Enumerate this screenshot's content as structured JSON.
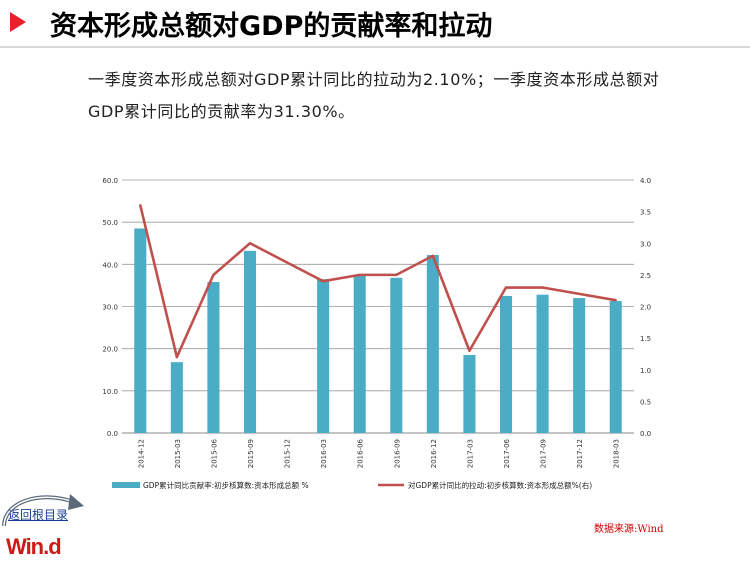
{
  "header": {
    "title": "资本形成总额对GDP的贡献率和拉动"
  },
  "description": "一季度资本形成总额对GDP累计同比的拉动为2.10%；一季度资本形成总额对GDP累计同比的贡献率为31.30%。",
  "chart_data": {
    "type": "bar",
    "categories": [
      "2014-12",
      "2015-03",
      "2015-06",
      "2015-09",
      "2015-12",
      "2016-03",
      "2016-06",
      "2016-09",
      "2016-12",
      "2017-03",
      "2017-06",
      "2017-09",
      "2017-12",
      "2018-03"
    ],
    "left_axis": {
      "ylim": [
        0,
        60
      ],
      "ticks": [
        "0.0",
        "10.0",
        "20.0",
        "30.0",
        "40.0",
        "50.0",
        "60.0"
      ]
    },
    "right_axis": {
      "ylim": [
        0,
        4
      ],
      "ticks": [
        "0.0",
        "0.5",
        "1.0",
        "1.5",
        "2.0",
        "2.5",
        "3.0",
        "3.5",
        "4.0"
      ]
    },
    "series": [
      {
        "name": "GDP累计同比贡献率:初步核算数:资本形成总额 %",
        "type": "bar",
        "axis": "left",
        "color": "#4bacc6",
        "values": [
          48.5,
          16.8,
          35.8,
          43.2,
          null,
          36.5,
          37.5,
          36.8,
          42.2,
          18.5,
          32.5,
          32.8,
          32.0,
          31.3
        ]
      },
      {
        "name": "对GDP累计同比的拉动:初步核算数:资本形成总额%(右)",
        "type": "line",
        "axis": "right",
        "color": "#c0504d",
        "values": [
          3.6,
          1.2,
          2.5,
          3.0,
          2.7,
          2.4,
          2.5,
          2.5,
          2.8,
          1.3,
          2.3,
          2.3,
          2.2,
          2.1
        ]
      }
    ],
    "legend_position": "bottom",
    "grid": true
  },
  "footer": {
    "source": "数据来源:Wind",
    "back_link": "返回根目录",
    "logo_text": "Win.d"
  },
  "colors": {
    "accent": "#e8202a",
    "bar": "#4bacc6",
    "line": "#c0504d",
    "source_text": "#cc0000"
  }
}
